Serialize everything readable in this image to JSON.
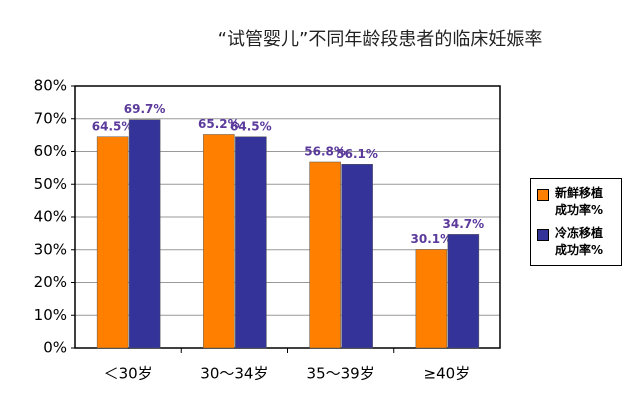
{
  "chart_data": {
    "type": "bar",
    "title": "“试管婴儿”不同年龄段患者的临床妊娠率",
    "categories": [
      "＜30岁",
      "30～34岁",
      "35～39岁",
      "≥40岁"
    ],
    "series": [
      {
        "name": "新鲜移植成功率%",
        "color": "#ff8000",
        "values": [
          64.5,
          65.2,
          56.8,
          30.1
        ],
        "value_labels": [
          "64.5%",
          "65.2%",
          "56.8%",
          "30.1%"
        ]
      },
      {
        "name": "冷冻移植成功率%",
        "color": "#333399",
        "values": [
          69.7,
          64.5,
          56.1,
          34.7
        ],
        "value_labels": [
          "69.7%",
          "64.5%",
          "56.1%",
          "34.7%"
        ]
      }
    ],
    "ylim": [
      0,
      80
    ],
    "yticks": [
      {
        "value": 0,
        "label": "0%"
      },
      {
        "value": 10,
        "label": "10%"
      },
      {
        "value": 20,
        "label": "20%"
      },
      {
        "value": 30,
        "label": "30%"
      },
      {
        "value": 40,
        "label": "40%"
      },
      {
        "value": 50,
        "label": "50%"
      },
      {
        "value": 60,
        "label": "60%"
      },
      {
        "value": 70,
        "label": "70%"
      },
      {
        "value": 80,
        "label": "80%"
      }
    ],
    "grid": true
  }
}
